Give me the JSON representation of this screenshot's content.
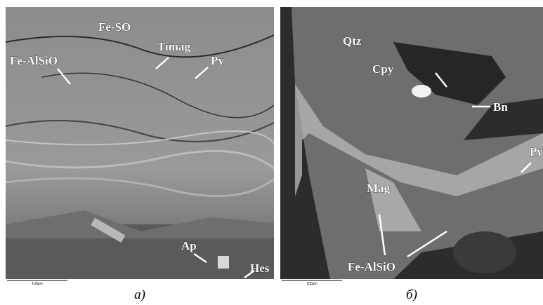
{
  "panels": [
    {
      "caption": "а)",
      "scale_bar": "100µm",
      "labels": [
        "Fe-SO",
        "Timag",
        "Fe-AlSiO",
        "Py",
        "Ap",
        "Hes"
      ]
    },
    {
      "caption": "б)",
      "scale_bar": "100µm",
      "labels": [
        "Qtz",
        "Cpy",
        "Bn",
        "Py",
        "Mag",
        "Fe-AlSiO"
      ]
    }
  ]
}
